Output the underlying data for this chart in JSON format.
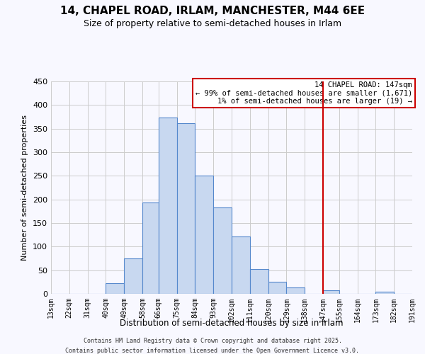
{
  "title": "14, CHAPEL ROAD, IRLAM, MANCHESTER, M44 6EE",
  "subtitle": "Size of property relative to semi-detached houses in Irlam",
  "xlabel": "Distribution of semi-detached houses by size in Irlam",
  "ylabel": "Number of semi-detached properties",
  "bar_edges": [
    13,
    22,
    31,
    40,
    49,
    58,
    66,
    75,
    84,
    93,
    102,
    111,
    120,
    129,
    138,
    147,
    155,
    164,
    173,
    182,
    191
  ],
  "bar_heights": [
    0,
    0,
    0,
    22,
    75,
    193,
    373,
    362,
    250,
    183,
    121,
    53,
    25,
    13,
    0,
    7,
    0,
    0,
    5,
    0
  ],
  "bar_color": "#c8d8f0",
  "bar_edge_color": "#5588cc",
  "grid_color": "#cccccc",
  "vline_x": 147,
  "vline_color": "#cc0000",
  "annotation_title": "14 CHAPEL ROAD: 147sqm",
  "annotation_line1": "← 99% of semi-detached houses are smaller (1,671)",
  "annotation_line2": "1% of semi-detached houses are larger (19) →",
  "annotation_box_color": "#cc0000",
  "ylim": [
    0,
    450
  ],
  "yticks": [
    0,
    50,
    100,
    150,
    200,
    250,
    300,
    350,
    400,
    450
  ],
  "xtick_labels": [
    "13sqm",
    "22sqm",
    "31sqm",
    "40sqm",
    "49sqm",
    "58sqm",
    "66sqm",
    "75sqm",
    "84sqm",
    "93sqm",
    "102sqm",
    "111sqm",
    "120sqm",
    "129sqm",
    "138sqm",
    "147sqm",
    "155sqm",
    "164sqm",
    "173sqm",
    "182sqm",
    "191sqm"
  ],
  "footnote1": "Contains HM Land Registry data © Crown copyright and database right 2025.",
  "footnote2": "Contains public sector information licensed under the Open Government Licence v3.0.",
  "bg_color": "#f8f8ff",
  "title_fontsize": 11,
  "subtitle_fontsize": 9,
  "ylabel_fontsize": 8,
  "xlabel_fontsize": 8.5,
  "ytick_fontsize": 8,
  "xtick_fontsize": 7
}
